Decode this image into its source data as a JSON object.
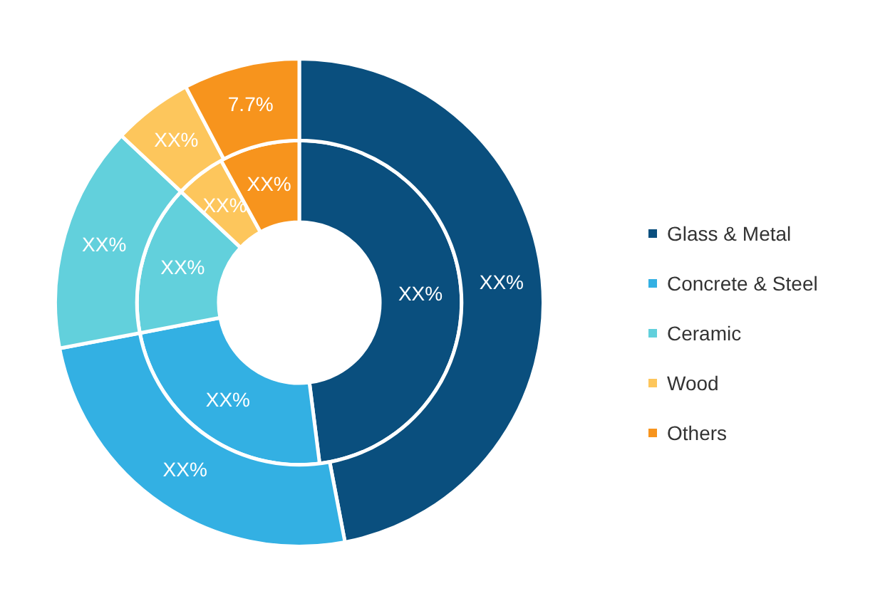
{
  "chart_data": {
    "type": "donut",
    "categories": [
      "Glass & Metal",
      "Concrete & Steel",
      "Ceramic",
      "Wood",
      "Others"
    ],
    "colors": [
      "#0a4f7e",
      "#33b0e3",
      "#62d0dc",
      "#fdc65c",
      "#f7941d"
    ],
    "legend": "right",
    "series": [
      {
        "values": [
          47,
          25,
          15,
          5.3,
          7.7
        ],
        "value_labels": [
          "XX%",
          "XX%",
          "XX%",
          "XX%",
          "7.7%"
        ]
      },
      {
        "values": [
          48,
          24,
          15,
          5,
          8
        ],
        "value_labels": [
          "XX%",
          "XX%",
          "XX%",
          "XX%",
          "XX%"
        ]
      }
    ]
  }
}
